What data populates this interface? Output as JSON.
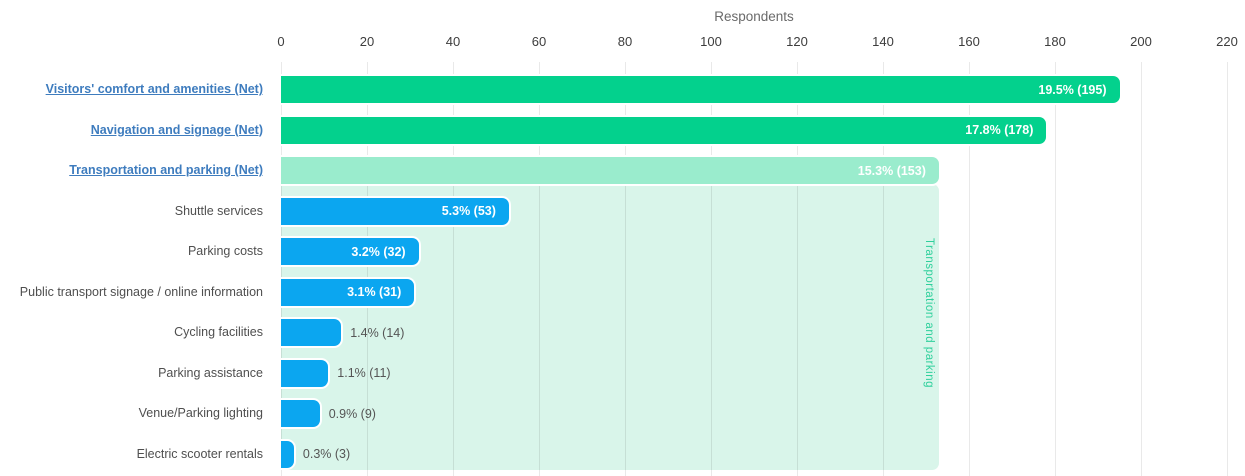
{
  "colors": {
    "green": "#03d18d",
    "light_green": "#9aeccd",
    "blue": "#0ba6f0",
    "band_bg": "#d9f5ea",
    "band_text": "#2fd09c",
    "link": "#3e7cbe",
    "label_text": "#4f4f4f",
    "tick_text": "#3d3d3d",
    "axis_title_text": "#6a6a6a",
    "value_outside_text": "#555555",
    "value_inside_text": "#ffffff"
  },
  "chart_data": {
    "type": "bar",
    "orientation": "horizontal",
    "axis_title": "Respondents",
    "xlabel": "Respondents",
    "xlim": [
      0,
      220
    ],
    "xticks": [
      0,
      20,
      40,
      60,
      80,
      100,
      120,
      140,
      160,
      180,
      200,
      220
    ],
    "grid": true,
    "legend": "none",
    "categories": [
      "Visitors' comfort and amenities (Net)",
      "Navigation and signage (Net)",
      "Transportation and parking (Net)",
      "Shuttle services",
      "Parking costs",
      "Public transport signage / online information",
      "Cycling facilities",
      "Parking assistance",
      "Venue/Parking lighting",
      "Electric scooter rentals"
    ],
    "values": [
      195,
      178,
      153,
      53,
      32,
      31,
      14,
      11,
      9,
      3
    ],
    "rows": [
      {
        "label": "Visitors' comfort and amenities (Net)",
        "value": 195,
        "display": "19.5% (195)",
        "color": "green",
        "is_link": true,
        "label_inside": true
      },
      {
        "label": "Navigation and signage (Net)",
        "value": 178,
        "display": "17.8% (178)",
        "color": "green",
        "is_link": true,
        "label_inside": true
      },
      {
        "label": "Transportation and parking (Net)",
        "value": 153,
        "display": "15.3% (153)",
        "color": "light_green",
        "is_link": true,
        "label_inside": true
      },
      {
        "label": "Shuttle services",
        "value": 53,
        "display": "5.3% (53)",
        "color": "blue",
        "is_link": false,
        "label_inside": true
      },
      {
        "label": "Parking costs",
        "value": 32,
        "display": "3.2% (32)",
        "color": "blue",
        "is_link": false,
        "label_inside": true
      },
      {
        "label": "Public transport signage / online information",
        "value": 31,
        "display": "3.1% (31)",
        "color": "blue",
        "is_link": false,
        "label_inside": true
      },
      {
        "label": "Cycling facilities",
        "value": 14,
        "display": "1.4% (14)",
        "color": "blue",
        "is_link": false,
        "label_inside": false
      },
      {
        "label": "Parking assistance",
        "value": 11,
        "display": "1.1% (11)",
        "color": "blue",
        "is_link": false,
        "label_inside": false
      },
      {
        "label": "Venue/Parking lighting",
        "value": 9,
        "display": "0.9% (9)",
        "color": "blue",
        "is_link": false,
        "label_inside": false
      },
      {
        "label": "Electric scooter rentals",
        "value": 3,
        "display": "0.3% (3)",
        "color": "blue",
        "is_link": false,
        "label_inside": false
      }
    ],
    "group_band": {
      "label": "Transportation and parking",
      "extent_value": 153
    }
  }
}
